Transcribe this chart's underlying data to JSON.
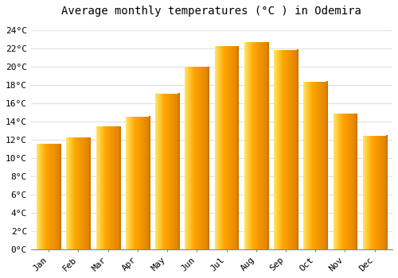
{
  "title": "Average monthly temperatures (°C ) in Odemira",
  "months": [
    "Jan",
    "Feb",
    "Mar",
    "Apr",
    "May",
    "Jun",
    "Jul",
    "Aug",
    "Sep",
    "Oct",
    "Nov",
    "Dec"
  ],
  "values": [
    11.5,
    12.2,
    13.4,
    14.5,
    17.0,
    19.9,
    22.2,
    22.6,
    21.8,
    18.3,
    14.8,
    12.4
  ],
  "bar_color_left": "#FFD966",
  "bar_color_mid": "#FFA500",
  "bar_color_right": "#E08000",
  "ylim": [
    0,
    25
  ],
  "yticks": [
    0,
    2,
    4,
    6,
    8,
    10,
    12,
    14,
    16,
    18,
    20,
    22,
    24
  ],
  "ytick_labels": [
    "0°C",
    "2°C",
    "4°C",
    "6°C",
    "8°C",
    "10°C",
    "12°C",
    "14°C",
    "16°C",
    "18°C",
    "20°C",
    "22°C",
    "24°C"
  ],
  "background_color": "#FFFFFF",
  "grid_color": "#E0E0E0",
  "title_fontsize": 10,
  "tick_fontsize": 8,
  "font_family": "monospace",
  "bar_width": 0.8
}
